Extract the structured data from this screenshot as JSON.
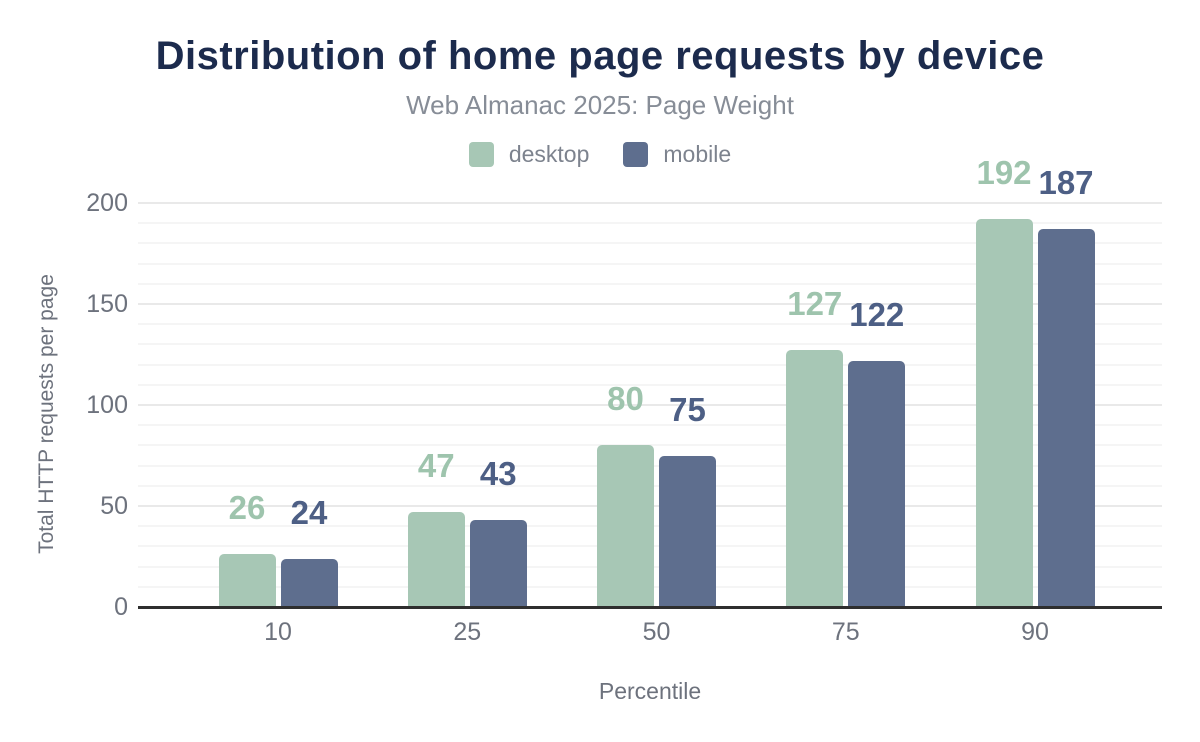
{
  "header": {
    "title": "Distribution of home page requests by device",
    "subtitle": "Web Almanac 2025: Page Weight"
  },
  "chart_data": {
    "type": "bar",
    "title": "Distribution of home page requests by device",
    "subtitle": "Web Almanac 2025: Page Weight",
    "xlabel": "Percentile",
    "ylabel": "Total HTTP requests per page",
    "categories": [
      "10",
      "25",
      "50",
      "75",
      "90"
    ],
    "series": [
      {
        "name": "desktop",
        "color": "#a7c7b5",
        "label_color": "#9ec4ad",
        "values": [
          26,
          47,
          80,
          127,
          192
        ]
      },
      {
        "name": "mobile",
        "color": "#5e6e8e",
        "label_color": "#4d5f85",
        "values": [
          24,
          43,
          75,
          122,
          187
        ]
      }
    ],
    "ylim": [
      0,
      200
    ],
    "yticks": [
      0,
      50,
      100,
      150,
      200
    ],
    "grid": {
      "minor_step": 10,
      "major_step": 50,
      "axis": "y"
    },
    "legend_position": "top",
    "value_labels": true,
    "colors": {
      "title": "#1c2b4d",
      "subtitle": "#878d97",
      "axis_text": "#6d727d",
      "baseline": "#2e2e2e",
      "gridline_minor": "#f5f5f5",
      "gridline_major": "#e9e9e9",
      "background": "#ffffff"
    }
  }
}
